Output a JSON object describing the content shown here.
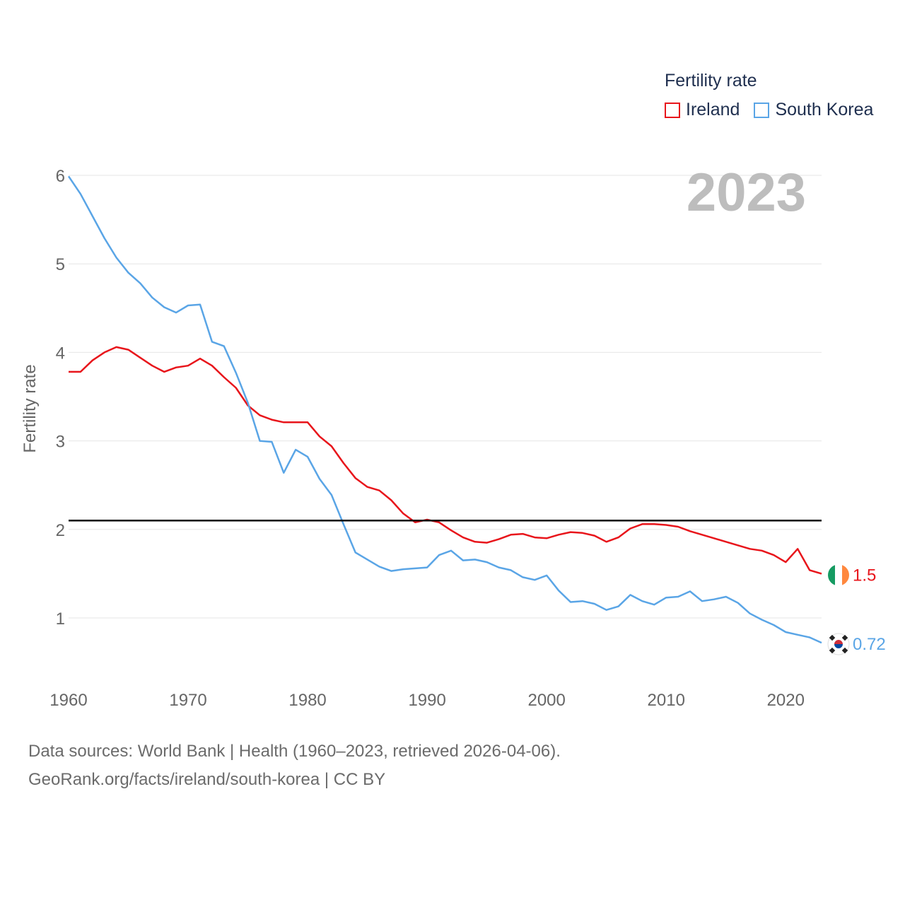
{
  "legend": {
    "title": "Fertility rate",
    "items": [
      {
        "label": "Ireland",
        "color": "#e8151b"
      },
      {
        "label": "South Korea",
        "color": "#5aa5e6"
      }
    ]
  },
  "year_label": "2023",
  "sources": {
    "line1": "Data sources: World Bank | Health (1960–2023, retrieved 2026-04-06).",
    "line2": "GeoRank.org/facts/ireland/south-korea | CC BY"
  },
  "chart_data": {
    "type": "line",
    "title": "Fertility rate",
    "xlabel": "",
    "ylabel": "Fertility rate",
    "xlim": [
      1960,
      2023
    ],
    "ylim": [
      0.55,
      6.0
    ],
    "xticks": [
      1960,
      1970,
      1980,
      1990,
      2000,
      2010,
      2020
    ],
    "yticks": [
      1,
      2,
      3,
      4,
      5,
      6
    ],
    "reference_line": {
      "y": 2.1,
      "color": "#000000"
    },
    "x": [
      1960,
      1961,
      1962,
      1963,
      1964,
      1965,
      1966,
      1967,
      1968,
      1969,
      1970,
      1971,
      1972,
      1973,
      1974,
      1975,
      1976,
      1977,
      1978,
      1979,
      1980,
      1981,
      1982,
      1983,
      1984,
      1985,
      1986,
      1987,
      1988,
      1989,
      1990,
      1991,
      1992,
      1993,
      1994,
      1995,
      1996,
      1997,
      1998,
      1999,
      2000,
      2001,
      2002,
      2003,
      2004,
      2005,
      2006,
      2007,
      2008,
      2009,
      2010,
      2011,
      2012,
      2013,
      2014,
      2015,
      2016,
      2017,
      2018,
      2019,
      2020,
      2021,
      2022,
      2023
    ],
    "series": [
      {
        "name": "Ireland",
        "color": "#e8151b",
        "end_label": "1.5",
        "flag": "ireland-flag-icon",
        "values": [
          3.78,
          3.78,
          3.91,
          4.0,
          4.06,
          4.03,
          3.94,
          3.85,
          3.78,
          3.83,
          3.85,
          3.93,
          3.85,
          3.72,
          3.6,
          3.4,
          3.29,
          3.24,
          3.21,
          3.21,
          3.21,
          3.05,
          2.94,
          2.75,
          2.58,
          2.48,
          2.44,
          2.33,
          2.18,
          2.08,
          2.11,
          2.08,
          1.99,
          1.91,
          1.86,
          1.85,
          1.89,
          1.94,
          1.95,
          1.91,
          1.9,
          1.94,
          1.97,
          1.96,
          1.93,
          1.86,
          1.91,
          2.01,
          2.06,
          2.06,
          2.05,
          2.03,
          1.98,
          1.94,
          1.9,
          1.86,
          1.82,
          1.78,
          1.76,
          1.71,
          1.63,
          1.78,
          1.54,
          1.5
        ]
      },
      {
        "name": "South Korea",
        "color": "#5aa5e6",
        "end_label": "0.72",
        "flag": "south-korea-flag-icon",
        "values": [
          5.99,
          5.79,
          5.54,
          5.29,
          5.07,
          4.9,
          4.78,
          4.62,
          4.51,
          4.45,
          4.53,
          4.54,
          4.12,
          4.07,
          3.77,
          3.43,
          3.0,
          2.99,
          2.64,
          2.9,
          2.82,
          2.57,
          2.39,
          2.06,
          1.74,
          1.66,
          1.58,
          1.53,
          1.55,
          1.56,
          1.57,
          1.71,
          1.76,
          1.65,
          1.66,
          1.63,
          1.57,
          1.54,
          1.46,
          1.43,
          1.48,
          1.31,
          1.18,
          1.19,
          1.16,
          1.09,
          1.13,
          1.26,
          1.19,
          1.15,
          1.23,
          1.24,
          1.3,
          1.19,
          1.21,
          1.24,
          1.17,
          1.05,
          0.98,
          0.92,
          0.84,
          0.81,
          0.78,
          0.72
        ]
      }
    ]
  }
}
